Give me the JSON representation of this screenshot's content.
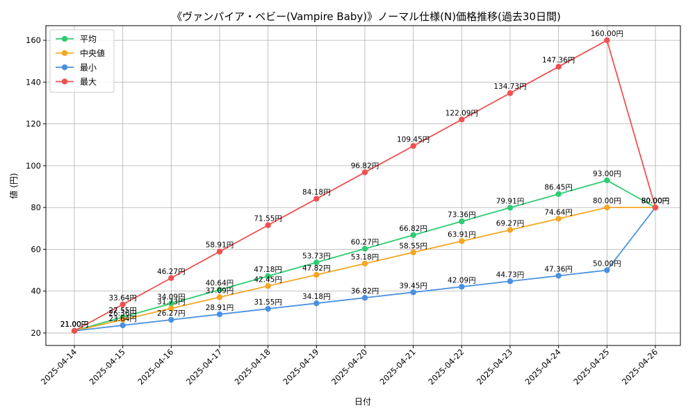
{
  "chart_data": {
    "type": "line",
    "title": "《ヴァンパイア・ベビー(Vampire Baby)》ノーマル仕様(N)価格推移(過去30日間)",
    "xlabel": "日付",
    "ylabel": "値 (円)",
    "unit_suffix": "円",
    "categories": [
      "2025-04-14",
      "2025-04-15",
      "2025-04-16",
      "2025-04-17",
      "2025-04-18",
      "2025-04-19",
      "2025-04-20",
      "2025-04-21",
      "2025-04-22",
      "2025-04-23",
      "2025-04-24",
      "2025-04-25",
      "2025-04-26"
    ],
    "ylim": [
      14,
      167
    ],
    "yticks": [
      20,
      40,
      60,
      80,
      100,
      120,
      140,
      160
    ],
    "grid": true,
    "legend_position": "top-left",
    "series": [
      {
        "name": "平均",
        "color": "#2ecc71",
        "values": [
          21.0,
          27.55,
          34.09,
          40.64,
          47.18,
          53.73,
          60.27,
          66.82,
          73.36,
          79.91,
          86.45,
          93.0,
          80.0
        ]
      },
      {
        "name": "中央値",
        "color": "#f5a623",
        "values": [
          21.0,
          26.36,
          31.73,
          37.09,
          42.45,
          47.82,
          53.18,
          58.55,
          63.91,
          69.27,
          74.64,
          80.0,
          80.0
        ]
      },
      {
        "name": "最小",
        "color": "#4a90e2",
        "values": [
          21.0,
          23.64,
          26.27,
          28.91,
          31.55,
          34.18,
          36.82,
          39.45,
          42.09,
          44.73,
          47.36,
          50.0,
          80.0
        ]
      },
      {
        "name": "最大",
        "color": "#f05050",
        "values": [
          21.0,
          33.64,
          46.27,
          58.91,
          71.55,
          84.18,
          96.82,
          109.45,
          122.09,
          134.73,
          147.36,
          160.0,
          80.0
        ]
      }
    ]
  }
}
